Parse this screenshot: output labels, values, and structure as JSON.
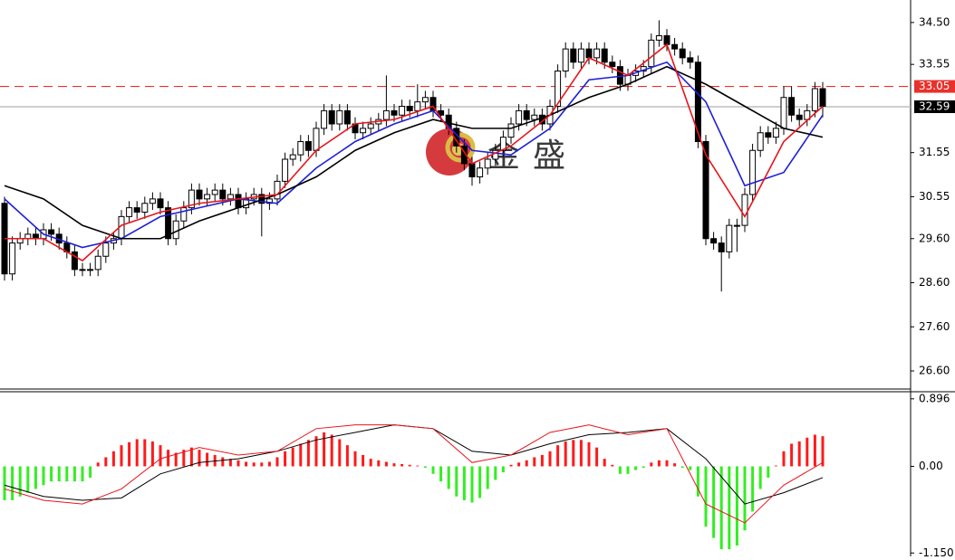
{
  "chart_data": [
    {
      "type": "candlestick",
      "watermark": "金盛",
      "up_color": "#ffffff",
      "down_color": "#000000",
      "ylim": [
        26.19,
        35.01
      ],
      "yticks": [
        {
          "value": 34.5,
          "label": "34.50"
        },
        {
          "value": 33.55,
          "label": "33.55"
        },
        {
          "value": 31.55,
          "label": "31.55"
        },
        {
          "value": 30.55,
          "label": "30.55"
        },
        {
          "value": 29.6,
          "label": "29.60"
        },
        {
          "value": 28.6,
          "label": "28.60"
        },
        {
          "value": 27.6,
          "label": "27.60"
        },
        {
          "value": 26.6,
          "label": "26.60"
        }
      ],
      "price_lines": [
        {
          "value": 33.05,
          "label": "33.05",
          "color": "#e8312b",
          "dashed": true
        },
        {
          "value": 32.59,
          "label": "32.59",
          "color": "#000000",
          "dashed": false
        }
      ],
      "open": [
        30.4,
        28.8,
        29.5,
        29.6,
        29.7,
        29.6,
        29.8,
        29.7,
        29.5,
        29.3,
        28.9,
        28.9,
        28.9,
        29.2,
        29.5,
        29.6,
        30.1,
        30.3,
        30.2,
        30.4,
        30.5,
        30.3,
        29.6,
        30.0,
        30.3,
        30.7,
        30.5,
        30.6,
        30.7,
        30.5,
        30.6,
        30.3,
        30.5,
        30.6,
        30.4,
        30.5,
        30.9,
        31.4,
        31.5,
        31.8,
        31.6,
        32.1,
        32.5,
        32.2,
        32.5,
        32.2,
        32.0,
        32.1,
        32.2,
        32.3,
        32.5,
        32.4,
        32.6,
        32.5,
        32.7,
        32.8,
        32.5,
        32.4,
        32.1,
        31.7,
        31.3,
        31.0,
        31.2,
        31.4,
        31.6,
        31.9,
        32.2,
        32.5,
        32.3,
        32.4,
        32.2,
        32.6,
        33.4,
        33.9,
        33.6,
        33.9,
        33.7,
        33.9,
        33.6,
        33.5,
        33.1,
        33.3,
        33.4,
        33.5,
        34.1,
        34.2,
        34.0,
        33.9,
        33.7,
        33.6,
        31.8,
        29.6,
        29.5,
        29.3,
        29.9,
        29.9,
        30.6,
        31.6,
        32.0,
        31.9,
        32.1,
        32.8,
        32.4,
        32.3,
        32.5,
        33.0
      ],
      "high": [
        30.55,
        29.65,
        29.75,
        29.85,
        29.85,
        29.95,
        29.95,
        29.85,
        29.65,
        29.45,
        29.05,
        29.05,
        29.35,
        29.65,
        29.75,
        30.25,
        30.45,
        30.45,
        30.55,
        30.65,
        30.65,
        30.45,
        30.15,
        30.45,
        30.85,
        30.85,
        30.75,
        30.85,
        30.85,
        30.75,
        30.75,
        30.65,
        30.75,
        30.75,
        30.65,
        31.05,
        31.55,
        31.65,
        31.95,
        31.95,
        32.25,
        32.65,
        32.65,
        32.65,
        32.65,
        32.35,
        32.25,
        32.35,
        32.45,
        33.3,
        32.65,
        32.75,
        32.75,
        33.1,
        32.95,
        32.95,
        32.65,
        32.55,
        32.25,
        31.85,
        31.45,
        31.35,
        31.55,
        31.75,
        32.05,
        32.35,
        32.65,
        32.65,
        32.55,
        32.55,
        32.75,
        33.55,
        34.05,
        34.05,
        34.05,
        34.05,
        34.05,
        34.05,
        33.75,
        33.65,
        33.45,
        33.55,
        33.65,
        34.25,
        34.55,
        34.35,
        34.15,
        34.05,
        33.85,
        33.75,
        31.95,
        29.75,
        29.65,
        30.05,
        30.05,
        30.75,
        31.75,
        32.15,
        32.15,
        32.25,
        33.05,
        33.05,
        32.55,
        32.65,
        33.15,
        33.15
      ],
      "low": [
        28.65,
        28.65,
        29.35,
        29.45,
        29.45,
        29.45,
        29.55,
        29.35,
        29.15,
        28.75,
        28.75,
        28.75,
        28.75,
        29.05,
        29.35,
        29.45,
        29.95,
        30.05,
        30.05,
        30.25,
        30.15,
        29.45,
        29.45,
        29.85,
        30.15,
        30.35,
        30.35,
        30.45,
        30.35,
        30.35,
        30.15,
        30.15,
        30.35,
        29.65,
        30.25,
        30.35,
        30.75,
        31.25,
        31.35,
        31.45,
        31.45,
        31.95,
        32.05,
        32.05,
        32.05,
        31.85,
        31.85,
        31.95,
        32.05,
        32.15,
        32.25,
        32.25,
        32.35,
        32.35,
        32.55,
        32.35,
        32.25,
        31.95,
        31.55,
        31.15,
        30.8,
        30.85,
        31.05,
        31.25,
        31.45,
        31.75,
        32.05,
        32.15,
        32.15,
        32.05,
        32.05,
        32.45,
        33.25,
        33.45,
        33.45,
        33.55,
        33.55,
        33.45,
        33.35,
        32.95,
        32.95,
        33.15,
        33.25,
        33.35,
        33.95,
        33.85,
        33.75,
        33.55,
        33.45,
        31.65,
        29.45,
        29.35,
        28.4,
        29.15,
        29.3,
        29.75,
        30.45,
        31.45,
        31.75,
        31.75,
        31.95,
        32.25,
        32.15,
        32.15,
        32.35,
        32.35
      ],
      "close": [
        28.8,
        29.5,
        29.6,
        29.7,
        29.6,
        29.8,
        29.7,
        29.5,
        29.3,
        28.9,
        28.9,
        28.9,
        29.2,
        29.5,
        29.6,
        30.1,
        30.3,
        30.2,
        30.4,
        30.5,
        30.3,
        29.6,
        30.0,
        30.3,
        30.7,
        30.5,
        30.6,
        30.7,
        30.5,
        30.6,
        30.3,
        30.5,
        30.6,
        30.4,
        30.5,
        30.9,
        31.4,
        31.5,
        31.8,
        31.6,
        32.1,
        32.5,
        32.2,
        32.5,
        32.2,
        32.0,
        32.1,
        32.2,
        32.3,
        32.5,
        32.4,
        32.6,
        32.5,
        32.7,
        32.8,
        32.5,
        32.4,
        32.1,
        31.7,
        31.3,
        31.0,
        31.2,
        31.4,
        31.6,
        31.9,
        32.2,
        32.5,
        32.3,
        32.4,
        32.2,
        32.6,
        33.4,
        33.9,
        33.6,
        33.9,
        33.7,
        33.9,
        33.6,
        33.5,
        33.1,
        33.3,
        33.4,
        33.5,
        34.1,
        34.2,
        34.0,
        33.9,
        33.7,
        33.6,
        31.8,
        29.6,
        29.5,
        29.3,
        29.9,
        29.9,
        30.6,
        31.6,
        32.0,
        31.9,
        32.1,
        32.8,
        32.4,
        32.3,
        32.5,
        33.0,
        32.6
      ],
      "ma_series": [
        {
          "color": "#1f1fd8",
          "x": [
            0,
            5,
            10,
            15,
            20,
            25,
            30,
            35,
            40,
            45,
            50,
            55,
            60,
            65,
            70,
            75,
            80,
            85,
            90,
            95,
            100,
            105
          ],
          "values": [
            30.5,
            29.7,
            29.4,
            29.6,
            30.1,
            30.3,
            30.5,
            30.4,
            31.2,
            31.8,
            32.2,
            32.5,
            31.6,
            31.5,
            32.1,
            33.2,
            33.3,
            33.6,
            32.7,
            30.8,
            31.1,
            32.4
          ]
        },
        {
          "color": "#000000",
          "x": [
            0,
            5,
            10,
            15,
            20,
            25,
            30,
            35,
            40,
            45,
            50,
            55,
            60,
            65,
            70,
            75,
            80,
            85,
            90,
            95,
            100,
            105
          ],
          "values": [
            30.8,
            30.5,
            29.9,
            29.6,
            29.6,
            30.0,
            30.3,
            30.6,
            31.0,
            31.6,
            32.0,
            32.3,
            32.1,
            32.1,
            32.4,
            32.8,
            33.1,
            33.5,
            33.1,
            32.6,
            32.1,
            31.9
          ]
        },
        {
          "color": "#e8141b",
          "x": [
            0,
            5,
            10,
            15,
            20,
            25,
            30,
            35,
            40,
            45,
            50,
            55,
            60,
            65,
            70,
            75,
            80,
            85,
            90,
            95,
            100,
            105
          ],
          "values": [
            29.6,
            29.6,
            29.1,
            29.9,
            30.2,
            30.4,
            30.5,
            30.6,
            31.6,
            32.2,
            32.3,
            32.6,
            31.3,
            31.7,
            32.4,
            33.7,
            33.3,
            34.0,
            31.5,
            30.1,
            31.8,
            32.6
          ]
        }
      ]
    },
    {
      "type": "macd",
      "ylim": [
        -1.195,
        0.99
      ],
      "yticks": [
        0.896,
        {
          "value": 0,
          "label": "0.00"
        },
        {
          "value": -1.15,
          "label": "-1.150"
        }
      ],
      "pos_color": "#ff1a1a",
      "neg_color": "#33ee22",
      "histogram": [
        -0.45,
        -0.45,
        -0.4,
        -0.35,
        -0.3,
        -0.25,
        -0.2,
        -0.2,
        -0.2,
        -0.2,
        -0.2,
        -0.15,
        0.05,
        0.12,
        0.2,
        0.28,
        0.32,
        0.36,
        0.36,
        0.33,
        0.28,
        0.22,
        0.18,
        0.22,
        0.25,
        0.22,
        0.18,
        0.15,
        0.12,
        0.1,
        0.08,
        0.06,
        0.05,
        0.05,
        0.06,
        0.12,
        0.2,
        0.25,
        0.3,
        0.35,
        0.4,
        0.45,
        0.42,
        0.36,
        0.28,
        0.2,
        0.15,
        0.1,
        0.08,
        0.06,
        0.04,
        0.03,
        0.02,
        0.01,
        -0.02,
        -0.1,
        -0.2,
        -0.3,
        -0.4,
        -0.45,
        -0.48,
        -0.42,
        -0.3,
        -0.18,
        -0.08,
        0.02,
        0.05,
        0.08,
        0.12,
        0.15,
        0.2,
        0.28,
        0.33,
        0.35,
        0.35,
        0.32,
        0.25,
        0.1,
        0.02,
        -0.1,
        -0.1,
        -0.05,
        -0.02,
        0.05,
        0.08,
        0.08,
        0.04,
        -0.02,
        -0.05,
        -0.4,
        -0.8,
        -0.95,
        -1.1,
        -1.1,
        -1.05,
        -0.85,
        -0.6,
        -0.3,
        -0.15,
        0.01,
        0.2,
        0.3,
        0.33,
        0.38,
        0.42,
        0.4
      ],
      "series": [
        {
          "color": "#000000",
          "x": [
            0,
            5,
            10,
            15,
            20,
            25,
            30,
            35,
            40,
            45,
            50,
            55,
            60,
            65,
            70,
            75,
            80,
            85,
            90,
            95,
            100,
            105
          ],
          "values": [
            -0.25,
            -0.4,
            -0.45,
            -0.42,
            -0.1,
            0.05,
            0.1,
            0.2,
            0.35,
            0.45,
            0.55,
            0.5,
            0.2,
            0.15,
            0.3,
            0.42,
            0.45,
            0.5,
            0.1,
            -0.5,
            -0.35,
            -0.15
          ]
        },
        {
          "color": "#e8141b",
          "x": [
            0,
            5,
            10,
            15,
            20,
            25,
            30,
            35,
            40,
            45,
            50,
            55,
            60,
            65,
            70,
            75,
            80,
            85,
            90,
            95,
            100,
            105
          ],
          "values": [
            -0.3,
            -0.45,
            -0.5,
            -0.3,
            0.1,
            0.25,
            0.15,
            0.2,
            0.5,
            0.55,
            0.55,
            0.5,
            0.05,
            0.15,
            0.45,
            0.55,
            0.42,
            0.5,
            -0.5,
            -0.75,
            -0.25,
            0.05
          ]
        }
      ]
    }
  ]
}
